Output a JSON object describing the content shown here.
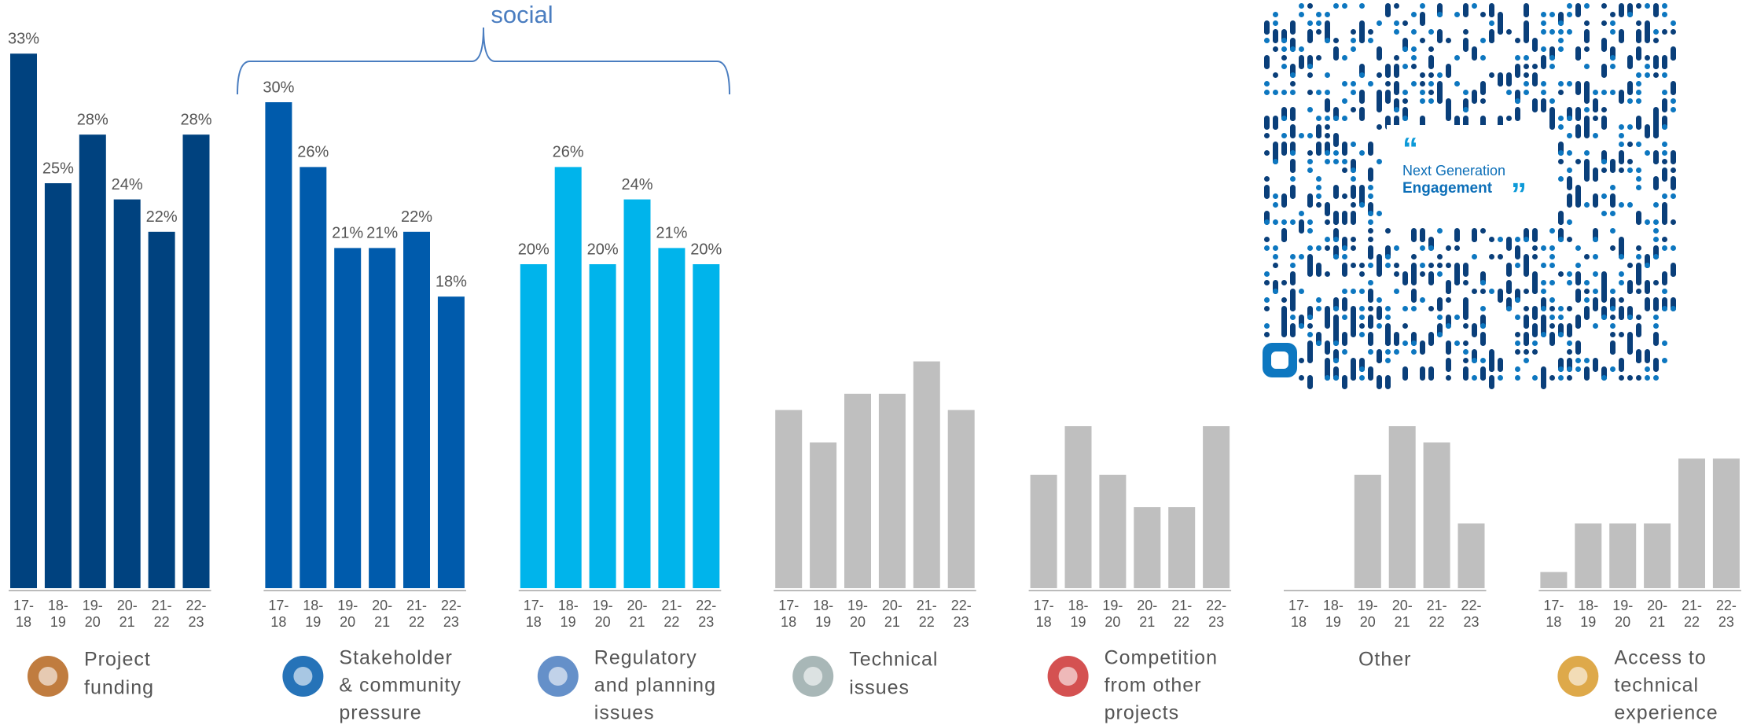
{
  "chart_data": {
    "type": "bar",
    "ylim": [
      0,
      35
    ],
    "categories": [
      [
        "17-",
        "18"
      ],
      [
        "18-",
        "19"
      ],
      [
        "19-",
        "20"
      ],
      [
        "20-",
        "21"
      ],
      [
        "21-",
        "22"
      ],
      [
        "22-",
        "23"
      ]
    ],
    "annotation": "social",
    "qr_text": [
      "Next Generation",
      "Engagement"
    ],
    "series": [
      {
        "name": [
          "Project",
          "funding"
        ],
        "color": "#00427f",
        "values": [
          33,
          25,
          28,
          24,
          22,
          28
        ],
        "value_labels": [
          "33%",
          "25%",
          "28%",
          "24%",
          "22%",
          "28%"
        ]
      },
      {
        "name": [
          "Stakeholder",
          "& community",
          "pressure"
        ],
        "color": "#005bac",
        "values": [
          30,
          26,
          21,
          21,
          22,
          18
        ],
        "value_labels": [
          "30%",
          "26%",
          "21%",
          "21%",
          "22%",
          "18%"
        ]
      },
      {
        "name": [
          "Regulatory",
          "and planning",
          "issues"
        ],
        "color": "#00b4eb",
        "values": [
          20,
          26,
          20,
          24,
          21,
          20
        ],
        "value_labels": [
          "20%",
          "26%",
          "20%",
          "24%",
          "21%",
          "20%"
        ]
      },
      {
        "name": [
          "Technical",
          "issues"
        ],
        "color": "#bfbfbf",
        "values": [
          11,
          9,
          12,
          12,
          14,
          11
        ]
      },
      {
        "name": [
          "Competition",
          "from other",
          "projects"
        ],
        "color": "#bfbfbf",
        "values": [
          7,
          10,
          7,
          5,
          5,
          10
        ]
      },
      {
        "name": [
          "Other"
        ],
        "color": "#bfbfbf",
        "values": [
          0,
          0,
          7,
          10,
          9,
          4
        ]
      },
      {
        "name": [
          "Access to",
          "technical",
          "experience"
        ],
        "color": "#bfbfbf",
        "values": [
          1,
          4,
          4,
          4,
          8,
          8
        ]
      }
    ]
  }
}
